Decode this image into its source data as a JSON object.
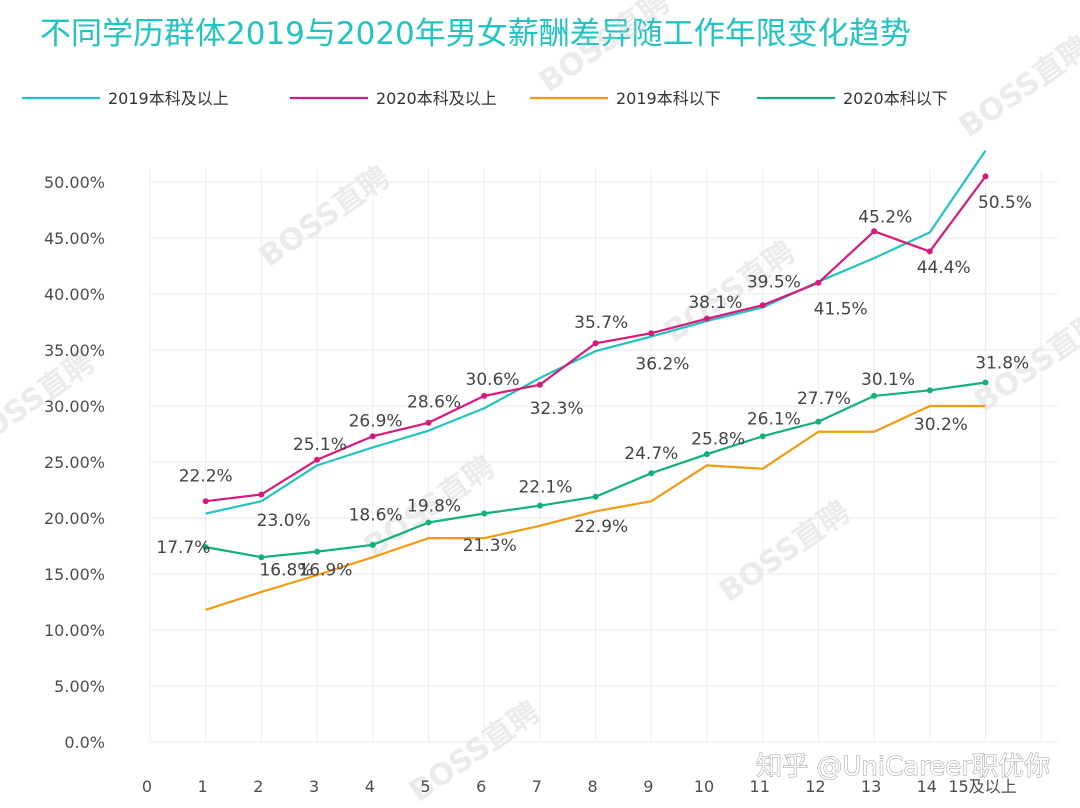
{
  "title": "不同学历群体2019与2020年男女薪酬差异随工作年限变化趋势",
  "watermark": "BOSS直聘",
  "credit": "知乎 @UniCareer职优你",
  "chart_data": {
    "type": "line",
    "x": [
      "0",
      "1",
      "2",
      "3",
      "4",
      "5",
      "6",
      "7",
      "8",
      "9",
      "10",
      "11",
      "12",
      "13",
      "14",
      "15及以上"
    ],
    "ylim": [
      0,
      50
    ],
    "yticks": [
      "0.0%",
      "5.00%",
      "10.00%",
      "15.00%",
      "20.00%",
      "25.00%",
      "30.00%",
      "35.00%",
      "40.00%",
      "45.00%",
      "50.00%"
    ],
    "legend_position": "top",
    "grid": true,
    "series": [
      {
        "name": "2019本科及以上",
        "color": "#21c4c0",
        "values": [
          null,
          20.4,
          21.5,
          24.7,
          26.3,
          27.8,
          29.8,
          32.5,
          34.9,
          36.2,
          37.6,
          38.8,
          41.1,
          43.2,
          45.5,
          52.8
        ]
      },
      {
        "name": "2020本科及以上",
        "color": "#d91a7b",
        "values": [
          null,
          21.5,
          22.1,
          25.2,
          27.3,
          28.5,
          30.9,
          31.9,
          35.6,
          36.5,
          37.8,
          39.0,
          41.0,
          45.6,
          43.8,
          50.5
        ]
      },
      {
        "name": "2019本科以下",
        "color": "#f29b13",
        "values": [
          null,
          11.8,
          13.4,
          14.9,
          16.5,
          18.2,
          18.2,
          19.3,
          20.6,
          21.5,
          24.7,
          24.4,
          27.7,
          27.7,
          30.0,
          30.0
        ]
      },
      {
        "name": "2020本科以下",
        "color": "#12b07a",
        "values": [
          null,
          17.4,
          16.5,
          17.0,
          17.6,
          19.6,
          20.4,
          21.1,
          21.9,
          24.0,
          25.7,
          27.3,
          28.6,
          30.9,
          31.4,
          32.1
        ]
      }
    ],
    "annotations": [
      {
        "text": "22.2%",
        "x": 1,
        "y": 23.8
      },
      {
        "text": "17.7%",
        "x": 0.6,
        "y": 17.4
      },
      {
        "text": "23.0%",
        "x": 2.4,
        "y": 19.8
      },
      {
        "text": "16.8%",
        "x": 2.45,
        "y": 15.4
      },
      {
        "text": "25.1%",
        "x": 3.05,
        "y": 26.6
      },
      {
        "text": "16.9%",
        "x": 3.15,
        "y": 15.4
      },
      {
        "text": "26.9%",
        "x": 4.05,
        "y": 28.7
      },
      {
        "text": "18.6%",
        "x": 4.05,
        "y": 20.3
      },
      {
        "text": "28.6%",
        "x": 5.1,
        "y": 30.4
      },
      {
        "text": "19.8%",
        "x": 5.1,
        "y": 21.1
      },
      {
        "text": "30.6%",
        "x": 6.15,
        "y": 32.4
      },
      {
        "text": "21.3%",
        "x": 6.1,
        "y": 17.6
      },
      {
        "text": "32.3%",
        "x": 7.3,
        "y": 29.8
      },
      {
        "text": "22.1%",
        "x": 7.1,
        "y": 22.8
      },
      {
        "text": "35.7%",
        "x": 8.1,
        "y": 37.5
      },
      {
        "text": "22.9%",
        "x": 8.1,
        "y": 19.3
      },
      {
        "text": "36.2%",
        "x": 9.2,
        "y": 33.8
      },
      {
        "text": "24.7%",
        "x": 9.0,
        "y": 25.8
      },
      {
        "text": "38.1%",
        "x": 10.15,
        "y": 39.3
      },
      {
        "text": "25.8%",
        "x": 10.2,
        "y": 27.1
      },
      {
        "text": "39.5%",
        "x": 11.2,
        "y": 41.1
      },
      {
        "text": "26.1%",
        "x": 11.2,
        "y": 28.9
      },
      {
        "text": "41.5%",
        "x": 12.4,
        "y": 38.7
      },
      {
        "text": "27.7%",
        "x": 12.1,
        "y": 30.7
      },
      {
        "text": "45.2%",
        "x": 13.2,
        "y": 46.9
      },
      {
        "text": "30.1%",
        "x": 13.25,
        "y": 32.4
      },
      {
        "text": "44.4%",
        "x": 14.25,
        "y": 42.4
      },
      {
        "text": "30.2%",
        "x": 14.2,
        "y": 28.4
      },
      {
        "text": "50.5%",
        "x": 15.35,
        "y": 48.2
      },
      {
        "text": "31.8%",
        "x": 15.3,
        "y": 33.9
      }
    ]
  }
}
